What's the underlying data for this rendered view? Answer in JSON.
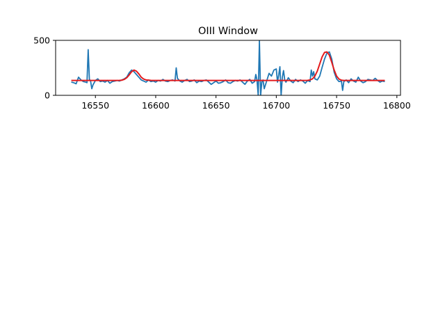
{
  "chart_data": {
    "type": "line",
    "title": "OIII Window",
    "xlabel": "",
    "ylabel": "",
    "xlim": [
      16517,
      16803
    ],
    "ylim": [
      0,
      500
    ],
    "grid": false,
    "x_ticks": [
      16550,
      16600,
      16650,
      16700,
      16750,
      16800
    ],
    "x_tick_labels": [
      "16550",
      "16600",
      "16650",
      "16700",
      "16750",
      "16800"
    ],
    "y_ticks": [
      0,
      500
    ],
    "y_tick_labels": [
      "0",
      "500"
    ],
    "series": [
      {
        "style": "observed",
        "color": "#1f77b4",
        "x": [
          16530,
          16532,
          16534,
          16536,
          16538,
          16540,
          16542,
          16543,
          16544,
          16545,
          16546,
          16547,
          16548,
          16550,
          16552,
          16554,
          16556,
          16558,
          16560,
          16562,
          16564,
          16566,
          16568,
          16570,
          16572,
          16574,
          16576,
          16578,
          16580,
          16582,
          16584,
          16586,
          16588,
          16590,
          16592,
          16594,
          16596,
          16598,
          16600,
          16602,
          16604,
          16606,
          16608,
          16610,
          16612,
          16614,
          16616,
          16617,
          16618,
          16620,
          16622,
          16624,
          16626,
          16628,
          16630,
          16632,
          16634,
          16636,
          16638,
          16640,
          16642,
          16644,
          16646,
          16648,
          16650,
          16652,
          16654,
          16656,
          16658,
          16660,
          16662,
          16664,
          16666,
          16668,
          16670,
          16672,
          16674,
          16676,
          16678,
          16680,
          16682,
          16683,
          16684,
          16685,
          16686,
          16687,
          16688,
          16689,
          16690,
          16692,
          16694,
          16696,
          16698,
          16700,
          16701,
          16702,
          16703,
          16704,
          16705,
          16706,
          16707,
          16708,
          16710,
          16712,
          16714,
          16716,
          16718,
          16720,
          16722,
          16724,
          16726,
          16728,
          16729,
          16730,
          16731,
          16732,
          16734,
          16736,
          16738,
          16740,
          16742,
          16744,
          16746,
          16748,
          16750,
          16752,
          16754,
          16755,
          16756,
          16758,
          16760,
          16762,
          16764,
          16766,
          16768,
          16770,
          16772,
          16774,
          16776,
          16778,
          16780,
          16782,
          16784,
          16786,
          16788,
          16790
        ],
        "y": [
          120,
          115,
          105,
          165,
          140,
          125,
          120,
          115,
          415,
          145,
          130,
          60,
          95,
          135,
          150,
          125,
          130,
          120,
          135,
          110,
          125,
          130,
          135,
          130,
          140,
          150,
          165,
          205,
          230,
          215,
          190,
          165,
          140,
          130,
          120,
          140,
          125,
          130,
          120,
          135,
          130,
          145,
          130,
          125,
          135,
          140,
          130,
          250,
          155,
          130,
          120,
          135,
          145,
          125,
          130,
          140,
          115,
          130,
          125,
          135,
          140,
          120,
          100,
          115,
          130,
          110,
          115,
          125,
          140,
          115,
          110,
          125,
          135,
          130,
          140,
          120,
          100,
          130,
          145,
          110,
          125,
          190,
          140,
          0,
          495,
          0,
          120,
          140,
          60,
          130,
          200,
          175,
          230,
          240,
          120,
          185,
          260,
          0,
          165,
          225,
          140,
          120,
          160,
          130,
          115,
          145,
          125,
          140,
          130,
          110,
          135,
          125,
          230,
          175,
          215,
          150,
          140,
          175,
          255,
          330,
          385,
          395,
          330,
          210,
          150,
          125,
          130,
          45,
          125,
          140,
          115,
          150,
          130,
          120,
          165,
          130,
          115,
          125,
          145,
          140,
          135,
          155,
          135,
          120,
          130,
          125
        ]
      },
      {
        "style": "fit",
        "color": "#e31a1c",
        "x": [
          16530,
          16540,
          16550,
          16560,
          16566,
          16570,
          16572,
          16574,
          16576,
          16578,
          16580,
          16582,
          16584,
          16586,
          16588,
          16590,
          16592,
          16596,
          16600,
          16620,
          16640,
          16660,
          16680,
          16700,
          16720,
          16726,
          16728,
          16730,
          16732,
          16734,
          16736,
          16738,
          16740,
          16742,
          16744,
          16746,
          16748,
          16750,
          16752,
          16754,
          16756,
          16760,
          16770,
          16780,
          16790
        ],
        "y": [
          135,
          135,
          135,
          135,
          135,
          136,
          138,
          145,
          160,
          185,
          215,
          230,
          220,
          195,
          165,
          148,
          140,
          136,
          135,
          135,
          135,
          135,
          135,
          135,
          135,
          136,
          140,
          150,
          175,
          220,
          285,
          350,
          390,
          395,
          365,
          300,
          230,
          175,
          148,
          138,
          135,
          135,
          135,
          135,
          135
        ]
      }
    ]
  }
}
